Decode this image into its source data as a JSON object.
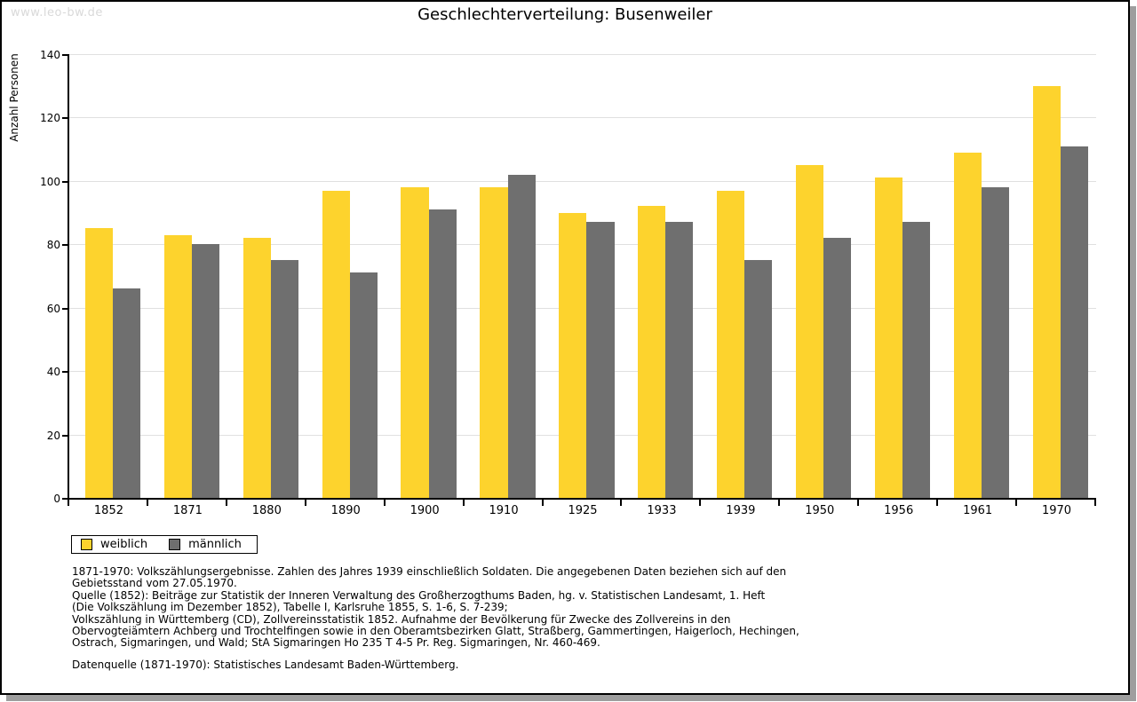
{
  "page": {
    "watermark": "www.leo-bw.de",
    "title": "Geschlechterverteilung: Busenweiler"
  },
  "chart_data": {
    "type": "bar",
    "title": "Geschlechterverteilung: Busenweiler",
    "xlabel": "",
    "ylabel": "Anzahl Personen",
    "ylim": [
      0,
      140
    ],
    "ytick_step": 20,
    "grid": true,
    "legend_position": "bottom-left",
    "categories": [
      "1852",
      "1871",
      "1880",
      "1890",
      "1900",
      "1910",
      "1925",
      "1933",
      "1939",
      "1950",
      "1956",
      "1961",
      "1970"
    ],
    "series": [
      {
        "name": "weiblich",
        "color": "#fdd32d",
        "values": [
          85,
          83,
          82,
          97,
          98,
          98,
          90,
          92,
          97,
          105,
          101,
          109,
          130
        ]
      },
      {
        "name": "männlich",
        "color": "#6f6f6f",
        "values": [
          66,
          80,
          75,
          71,
          91,
          102,
          87,
          87,
          75,
          82,
          87,
          98,
          111
        ]
      }
    ]
  },
  "footnotes": {
    "lines": [
      "1871-1970: Volkszählungsergebnisse. Zahlen des Jahres 1939 einschließlich Soldaten. Die angegebenen Daten beziehen sich auf den",
      "Gebietsstand vom 27.05.1970.",
      "Quelle (1852): Beiträge zur Statistik der Inneren Verwaltung des Großherzogthums Baden, hg. v. Statistischen Landesamt, 1. Heft",
      "(Die Volkszählung im Dezember 1852), Tabelle I, Karlsruhe 1855, S. 1-6, S. 7-239;",
      "Volkszählung in Württemberg (CD), Zollvereinsstatistik 1852. Aufnahme der Bevölkerung für Zwecke des Zollvereins in den",
      "Obervogteiämtern Achberg und Trochtelfingen sowie in den Oberamtsbezirken Glatt, Straßberg, Gammertingen, Haigerloch, Hechingen,",
      "Ostrach, Sigmaringen, und Wald; StA Sigmaringen Ho 235 T 4-5 Pr. Reg. Sigmaringen, Nr. 460-469."
    ],
    "datasource": "Datenquelle (1871-1970): Statistisches Landesamt Baden-Württemberg."
  }
}
